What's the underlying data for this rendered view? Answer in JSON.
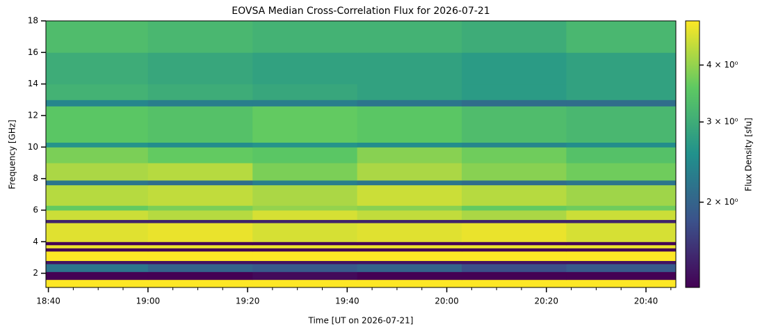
{
  "chart_data": {
    "type": "heatmap",
    "title": "EOVSA Median Cross-Correlation Flux for 2026-07-21",
    "x_label": "Time [UT on 2026-07-21]",
    "y_label": "Frequency [GHz]",
    "colorbar_label": "Flux Density [sfu]",
    "colormap": "viridis",
    "color_log_scale": true,
    "x_edges": [
      1119.5,
      1140,
      1161,
      1182,
      1203,
      1224,
      1246
    ],
    "y_edges": [
      1.1,
      1.6,
      2.1,
      2.6,
      2.8,
      3.4,
      3.6,
      3.8,
      4.0,
      5.2,
      5.4,
      6.0,
      6.3,
      7.6,
      7.9,
      9.0,
      10.0,
      10.3,
      12.6,
      13.0,
      14.0,
      16.0,
      18.0
    ],
    "values": [
      [
        5.0,
        5.0,
        5.0,
        5.0,
        5.0,
        5.0
      ],
      [
        1.3,
        1.3,
        1.35,
        1.3,
        1.3,
        1.3
      ],
      [
        2.2,
        2.0,
        1.9,
        2.0,
        1.8,
        1.9
      ],
      [
        1.4,
        1.4,
        1.4,
        1.4,
        1.4,
        1.4
      ],
      [
        5.0,
        5.0,
        5.0,
        5.0,
        5.0,
        5.0
      ],
      [
        1.3,
        1.3,
        1.3,
        1.3,
        1.3,
        1.3
      ],
      [
        4.8,
        4.8,
        4.8,
        4.8,
        4.8,
        4.8
      ],
      [
        1.3,
        1.3,
        1.3,
        1.3,
        1.3,
        1.3
      ],
      [
        4.7,
        4.8,
        4.6,
        4.7,
        4.8,
        4.6
      ],
      [
        1.5,
        1.5,
        1.5,
        1.5,
        1.5,
        1.5
      ],
      [
        4.5,
        4.3,
        4.6,
        4.4,
        4.2,
        4.5
      ],
      [
        3.6,
        3.8,
        4.0,
        3.9,
        3.6,
        3.7
      ],
      [
        4.3,
        4.4,
        4.2,
        4.5,
        4.3,
        4.1
      ],
      [
        2.2,
        2.1,
        2.3,
        2.2,
        2.1,
        2.2
      ],
      [
        4.2,
        4.3,
        3.8,
        4.2,
        3.9,
        3.7
      ],
      [
        3.8,
        3.6,
        3.5,
        3.9,
        3.7,
        3.4
      ],
      [
        2.6,
        2.5,
        2.6,
        2.5,
        2.4,
        2.5
      ],
      [
        3.5,
        3.4,
        3.6,
        3.5,
        3.3,
        3.2
      ],
      [
        2.4,
        2.3,
        2.3,
        2.2,
        2.1,
        2.1
      ],
      [
        3.1,
        3.0,
        2.9,
        2.8,
        2.7,
        2.8
      ],
      [
        3.0,
        2.9,
        2.8,
        2.8,
        2.7,
        2.8
      ],
      [
        3.3,
        3.2,
        3.1,
        3.1,
        3.0,
        3.2
      ]
    ],
    "xlim": [
      1119.5,
      1246
    ],
    "ylim": [
      1.1,
      18.0
    ],
    "clim": [
      1.3,
      5.0
    ],
    "xticks": [
      {
        "value": 1120,
        "label": "18:40"
      },
      {
        "value": 1140,
        "label": "19:00"
      },
      {
        "value": 1160,
        "label": "19:20"
      },
      {
        "value": 1180,
        "label": "19:40"
      },
      {
        "value": 1200,
        "label": "20:00"
      },
      {
        "value": 1220,
        "label": "20:20"
      },
      {
        "value": 1240,
        "label": "20:40"
      }
    ],
    "xminorticks": [
      1125,
      1130,
      1135,
      1145,
      1150,
      1155,
      1165,
      1170,
      1175,
      1185,
      1190,
      1195,
      1205,
      1210,
      1215,
      1225,
      1230,
      1235,
      1245
    ],
    "yticks": [
      2,
      4,
      6,
      8,
      10,
      12,
      14,
      16,
      18
    ],
    "cticks": [
      {
        "value": 2,
        "label": "2 × 10⁰"
      },
      {
        "value": 3,
        "label": "3 × 10⁰"
      },
      {
        "value": 4,
        "label": "4 × 10⁰"
      }
    ]
  }
}
